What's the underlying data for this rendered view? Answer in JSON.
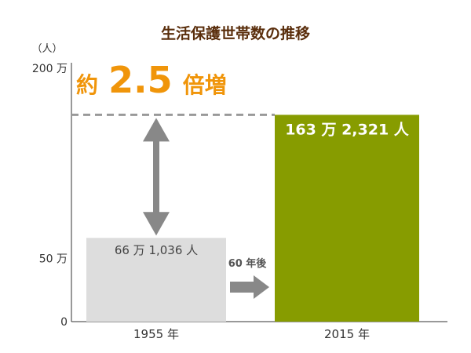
{
  "chart_data": {
    "type": "bar",
    "title": "生活保護世帯数の推移",
    "yunit": "（人）",
    "ylim": [
      0,
      2000000
    ],
    "yticks": [
      {
        "value": 0,
        "label": "0"
      },
      {
        "value": 500000,
        "label": "50 万"
      },
      {
        "value": 2000000,
        "label": "200 万"
      }
    ],
    "categories": [
      "1955 年",
      "2015 年"
    ],
    "values": [
      661036,
      1632321
    ],
    "value_labels": [
      "66 万 1,036 人",
      "163 万 2,321 人"
    ],
    "annotation": {
      "ratio_prefix": "約",
      "ratio_value": "2.5",
      "ratio_suffix": "倍増",
      "transition_text": "60 年後"
    },
    "colors": {
      "bar_1955": "#dddddd",
      "bar_2015": "#879c00",
      "accent": "#f0950a",
      "arrow": "#888888",
      "title": "#5a2e0c"
    }
  }
}
